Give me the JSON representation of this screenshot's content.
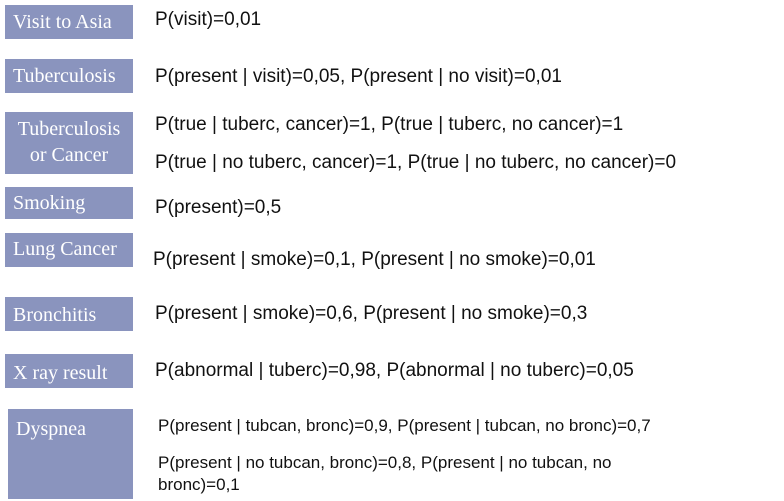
{
  "rows": [
    {
      "label": "Visit to Asia",
      "probs": [
        "P(visit)=0,01"
      ]
    },
    {
      "label": "Tuberculosis",
      "probs": [
        "P(present | visit)=0,05, P(present | no visit)=0,01"
      ]
    },
    {
      "label_lines": [
        "Tuberculosis",
        "or Cancer"
      ],
      "probs": [
        "P(true | tuberc, cancer)=1, P(true | tuberc, no cancer)=1",
        "P(true | no tuberc, cancer)=1, P(true | no tuberc, no cancer)=0"
      ]
    },
    {
      "label": "Smoking",
      "probs": [
        "P(present)=0,5"
      ]
    },
    {
      "label": "Lung Cancer",
      "probs": [
        "P(present | smoke)=0,1, P(present | no smoke)=0,01"
      ]
    },
    {
      "label": "Bronchitis",
      "probs": [
        "P(present | smoke)=0,6, P(present | no smoke)=0,3"
      ]
    },
    {
      "label": "X ray result",
      "probs": [
        "P(abnormal | tuberc)=0,98, P(abnormal | no tuberc)=0,05"
      ]
    },
    {
      "label": "Dyspnea",
      "probs": [
        "P(present | tubcan, bronc)=0,9, P(present | tubcan, no bronc)=0,7",
        "P(present | no tubcan, bronc)=0,8, P(present | no tubcan, no bronc)=0,1"
      ]
    }
  ],
  "colors": {
    "label_background": "#8a94be",
    "label_text": "#ffffff",
    "body_text": "#111111"
  }
}
